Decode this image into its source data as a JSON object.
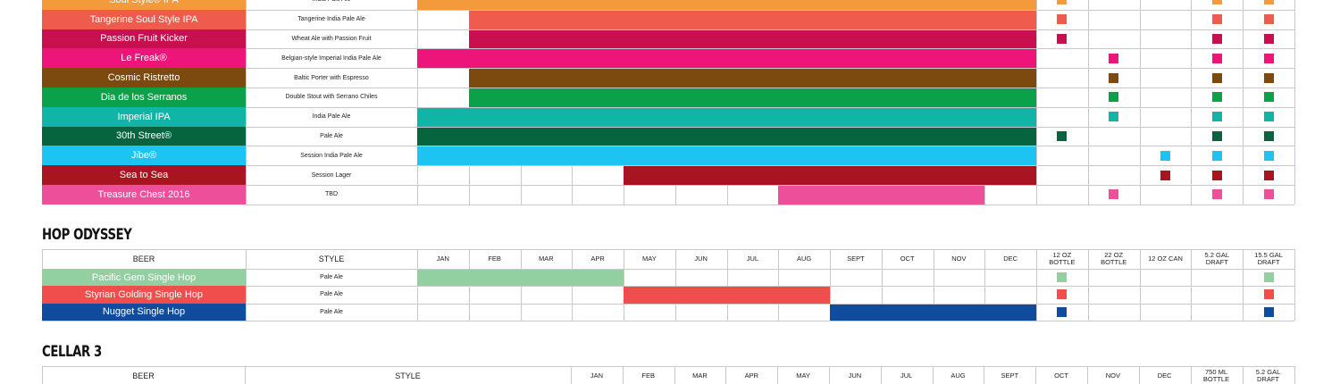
{
  "months": [
    "JAN",
    "FEB",
    "MAR",
    "APR",
    "MAY",
    "JUN",
    "JUL",
    "AUG",
    "SEPT",
    "OCT",
    "NOV",
    "DEC"
  ],
  "format_headers": [
    "12 OZ BOTTLE",
    "22 OZ BOTTLE",
    "12 OZ CAN",
    "5.2 GAL DRAFT",
    "15.5 GAL DRAFT"
  ],
  "section_core": {
    "rows": [
      {
        "name": "Soul Style® IPA",
        "style": "India Pale Ale",
        "color": "#F39A3B",
        "bar_start": 0,
        "bar_end": 12,
        "formats": [
          true,
          false,
          false,
          true,
          true
        ]
      },
      {
        "name": "Tangerine Soul Style IPA",
        "style": "Tangerine India Pale Ale",
        "color": "#EF5B4C",
        "bar_start": 1,
        "bar_end": 12,
        "formats": [
          true,
          false,
          false,
          true,
          true
        ]
      },
      {
        "name": "Passion Fruit Kicker",
        "style": "Wheat Ale with Passion Fruit",
        "color": "#C8104F",
        "bar_start": 1,
        "bar_end": 12,
        "formats": [
          true,
          false,
          false,
          true,
          true
        ]
      },
      {
        "name": "Le Freak®",
        "style": "Belgian-style Imperial India Pale Ale",
        "color": "#ED1579",
        "bar_start": 0,
        "bar_end": 12,
        "formats": [
          false,
          true,
          false,
          true,
          true
        ]
      },
      {
        "name": "Cosmic Ristretto",
        "style": "Baltic Porter with Espresso",
        "color": "#7C4A0E",
        "bar_start": 1,
        "bar_end": 12,
        "formats": [
          false,
          true,
          false,
          true,
          true
        ]
      },
      {
        "name": "Dia de los Serranos",
        "style": "Double Stout with Serrano Chiles",
        "color": "#0BA14B",
        "bar_start": 1,
        "bar_end": 12,
        "formats": [
          false,
          true,
          false,
          true,
          true
        ]
      },
      {
        "name": "Imperial IPA",
        "style": "India Pale Ale",
        "color": "#10B5A6",
        "bar_start": 0,
        "bar_end": 12,
        "formats": [
          false,
          true,
          false,
          true,
          true
        ]
      },
      {
        "name": "30th Street®",
        "style": "Pale Ale",
        "color": "#06653F",
        "bar_start": 0,
        "bar_end": 12,
        "formats": [
          true,
          false,
          false,
          true,
          true
        ]
      },
      {
        "name": "Jibe®",
        "style": "Session India Pale Ale",
        "color": "#1DC4F1",
        "bar_start": 0,
        "bar_end": 12,
        "formats": [
          false,
          false,
          true,
          true,
          true
        ]
      },
      {
        "name": "Sea to Sea",
        "style": "Session Lager",
        "color": "#A8141F",
        "bar_start": 4,
        "bar_end": 12,
        "formats": [
          false,
          false,
          true,
          true,
          true
        ]
      },
      {
        "name": "Treasure Chest 2016",
        "style": "TBD",
        "color": "#EE4F9B",
        "bar_start": 7,
        "bar_end": 11,
        "formats": [
          false,
          true,
          false,
          true,
          true
        ]
      }
    ]
  },
  "section_hop": {
    "title": "HOP ODYSSEY",
    "header_beer": "BEER",
    "header_style": "STYLE",
    "rows": [
      {
        "name": "Pacific Gem Single Hop",
        "style": "Pale Ale",
        "color": "#92CFA1",
        "bar_start": 0,
        "bar_end": 4,
        "formats": [
          true,
          false,
          false,
          false,
          true
        ]
      },
      {
        "name": "Styrian Golding Single Hop",
        "style": "Pale Ale",
        "color": "#EF4E4C",
        "bar_start": 4,
        "bar_end": 8,
        "formats": [
          true,
          false,
          false,
          false,
          true
        ]
      },
      {
        "name": "Nugget Single Hop",
        "style": "Pale Ale",
        "color": "#0F4C9E",
        "bar_start": 8,
        "bar_end": 12,
        "formats": [
          true,
          false,
          false,
          false,
          true
        ]
      }
    ]
  },
  "section_cellar": {
    "title": "CELLAR 3",
    "header_beer": "BEER",
    "header_style": "STYLE",
    "months": [
      "JAN",
      "FEB",
      "MAR",
      "APR",
      "MAY",
      "JUN",
      "JUL",
      "AUG",
      "SEPT",
      "OCT",
      "NOV",
      "DEC"
    ],
    "format_headers": [
      "750 ML BOTTLE",
      "5.2 GAL DRAFT"
    ]
  }
}
